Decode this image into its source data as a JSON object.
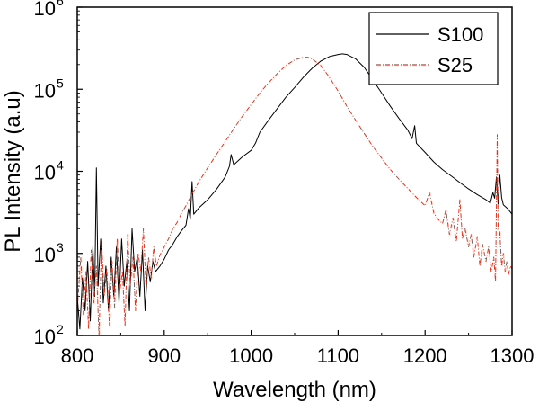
{
  "chart_data": {
    "type": "line",
    "title": "",
    "xlabel": "Wavelength (nm)",
    "ylabel": "PL Intensity (a.u)",
    "xlim": [
      800,
      1300
    ],
    "ylim": [
      100,
      1000000
    ],
    "yscale": "log",
    "grid": false,
    "legend_position": "top-right",
    "x_ticks": [
      800,
      900,
      1000,
      1100,
      1200,
      1300
    ],
    "x_tick_labels": [
      "800",
      "900",
      "1000",
      "1100",
      "1200",
      "1300"
    ],
    "y_ticks": [
      100,
      1000,
      10000,
      100000,
      1000000
    ],
    "y_tick_labels": [
      {
        "base": "10",
        "exp": "2"
      },
      {
        "base": "10",
        "exp": "3"
      },
      {
        "base": "10",
        "exp": "4"
      },
      {
        "base": "10",
        "exp": "5"
      },
      {
        "base": "10",
        "exp": "6"
      }
    ],
    "series": [
      {
        "name": "S100",
        "color": "#000000",
        "style": "solid",
        "points": [
          [
            800,
            300
          ],
          [
            803,
            120
          ],
          [
            806,
            500
          ],
          [
            809,
            200
          ],
          [
            812,
            800
          ],
          [
            815,
            150
          ],
          [
            818,
            1200
          ],
          [
            820,
            300
          ],
          [
            822,
            11000
          ],
          [
            824,
            400
          ],
          [
            827,
            1500
          ],
          [
            830,
            250
          ],
          [
            833,
            700
          ],
          [
            836,
            200
          ],
          [
            839,
            900
          ],
          [
            842,
            300
          ],
          [
            845,
            1200
          ],
          [
            848,
            250
          ],
          [
            851,
            1500
          ],
          [
            854,
            400
          ],
          [
            857,
            800
          ],
          [
            860,
            200
          ],
          [
            863,
            2000
          ],
          [
            866,
            600
          ],
          [
            869,
            900
          ],
          [
            872,
            300
          ],
          [
            875,
            1100
          ],
          [
            878,
            200
          ],
          [
            881,
            700
          ],
          [
            884,
            450
          ],
          [
            887,
            800
          ],
          [
            890,
            600
          ],
          [
            895,
            700
          ],
          [
            900,
            850
          ],
          [
            905,
            1100
          ],
          [
            910,
            1300
          ],
          [
            915,
            1600
          ],
          [
            920,
            1900
          ],
          [
            925,
            2200
          ],
          [
            928,
            3500
          ],
          [
            930,
            2600
          ],
          [
            932,
            7500
          ],
          [
            934,
            3000
          ],
          [
            940,
            3600
          ],
          [
            950,
            4500
          ],
          [
            960,
            6000
          ],
          [
            970,
            8500
          ],
          [
            975,
            11500
          ],
          [
            977,
            16000
          ],
          [
            980,
            12000
          ],
          [
            990,
            15000
          ],
          [
            1000,
            18000
          ],
          [
            1005,
            22000
          ],
          [
            1010,
            30000
          ],
          [
            1020,
            42000
          ],
          [
            1030,
            58000
          ],
          [
            1040,
            80000
          ],
          [
            1050,
            105000
          ],
          [
            1060,
            140000
          ],
          [
            1070,
            180000
          ],
          [
            1080,
            220000
          ],
          [
            1090,
            250000
          ],
          [
            1100,
            265000
          ],
          [
            1105,
            270000
          ],
          [
            1110,
            265000
          ],
          [
            1120,
            235000
          ],
          [
            1130,
            185000
          ],
          [
            1140,
            130000
          ],
          [
            1150,
            90000
          ],
          [
            1160,
            62000
          ],
          [
            1170,
            44000
          ],
          [
            1180,
            32000
          ],
          [
            1185,
            25000
          ],
          [
            1188,
            36000
          ],
          [
            1190,
            22000
          ],
          [
            1200,
            17000
          ],
          [
            1210,
            13000
          ],
          [
            1220,
            10500
          ],
          [
            1230,
            8800
          ],
          [
            1240,
            7300
          ],
          [
            1250,
            6100
          ],
          [
            1260,
            5200
          ],
          [
            1270,
            4500
          ],
          [
            1275,
            4100
          ],
          [
            1278,
            5500
          ],
          [
            1280,
            4700
          ],
          [
            1282,
            8500
          ],
          [
            1284,
            4000
          ],
          [
            1286,
            9000
          ],
          [
            1288,
            4800
          ],
          [
            1290,
            3900
          ],
          [
            1295,
            3500
          ],
          [
            1300,
            3000
          ]
        ]
      },
      {
        "name": "S25",
        "color": "#e8331c",
        "style": "dash-dot",
        "points": [
          [
            800,
            200
          ],
          [
            804,
            900
          ],
          [
            807,
            180
          ],
          [
            810,
            600
          ],
          [
            813,
            120
          ],
          [
            816,
            1100
          ],
          [
            819,
            250
          ],
          [
            822,
            700
          ],
          [
            825,
            100
          ],
          [
            828,
            1400
          ],
          [
            831,
            300
          ],
          [
            834,
            650
          ],
          [
            837,
            130
          ],
          [
            840,
            800
          ],
          [
            843,
            220
          ],
          [
            846,
            1500
          ],
          [
            849,
            350
          ],
          [
            852,
            600
          ],
          [
            855,
            130
          ],
          [
            858,
            1700
          ],
          [
            861,
            400
          ],
          [
            864,
            900
          ],
          [
            867,
            200
          ],
          [
            870,
            1000
          ],
          [
            873,
            600
          ],
          [
            876,
            2000
          ],
          [
            879,
            400
          ],
          [
            882,
            900
          ],
          [
            885,
            500
          ],
          [
            888,
            1200
          ],
          [
            891,
            700
          ],
          [
            895,
            950
          ],
          [
            900,
            1200
          ],
          [
            905,
            1500
          ],
          [
            910,
            2000
          ],
          [
            915,
            2400
          ],
          [
            920,
            3100
          ],
          [
            925,
            3800
          ],
          [
            930,
            4800
          ],
          [
            935,
            6000
          ],
          [
            940,
            7500
          ],
          [
            950,
            11000
          ],
          [
            960,
            16000
          ],
          [
            970,
            23000
          ],
          [
            980,
            33000
          ],
          [
            990,
            47000
          ],
          [
            1000,
            65000
          ],
          [
            1010,
            90000
          ],
          [
            1020,
            120000
          ],
          [
            1030,
            155000
          ],
          [
            1040,
            195000
          ],
          [
            1050,
            228000
          ],
          [
            1060,
            245000
          ],
          [
            1065,
            246000
          ],
          [
            1070,
            235000
          ],
          [
            1080,
            195000
          ],
          [
            1090,
            140000
          ],
          [
            1100,
            95000
          ],
          [
            1110,
            62000
          ],
          [
            1120,
            42000
          ],
          [
            1130,
            29000
          ],
          [
            1140,
            20000
          ],
          [
            1150,
            14500
          ],
          [
            1160,
            10500
          ],
          [
            1170,
            8000
          ],
          [
            1180,
            6200
          ],
          [
            1190,
            4800
          ],
          [
            1200,
            3800
          ],
          [
            1205,
            5500
          ],
          [
            1210,
            3100
          ],
          [
            1215,
            2600
          ],
          [
            1220,
            2300
          ],
          [
            1224,
            3400
          ],
          [
            1228,
            1700
          ],
          [
            1232,
            2700
          ],
          [
            1236,
            1400
          ],
          [
            1240,
            4500
          ],
          [
            1243,
            1500
          ],
          [
            1246,
            2000
          ],
          [
            1250,
            1200
          ],
          [
            1253,
            1700
          ],
          [
            1256,
            900
          ],
          [
            1260,
            1600
          ],
          [
            1263,
            700
          ],
          [
            1266,
            1300
          ],
          [
            1270,
            800
          ],
          [
            1273,
            1200
          ],
          [
            1276,
            600
          ],
          [
            1279,
            900
          ],
          [
            1281,
            450
          ],
          [
            1283,
            28000
          ],
          [
            1284,
            2000
          ],
          [
            1286,
            1800
          ],
          [
            1288,
            700
          ],
          [
            1290,
            1000
          ],
          [
            1292,
            600
          ],
          [
            1294,
            800
          ],
          [
            1296,
            550
          ],
          [
            1298,
            700
          ],
          [
            1300,
            650
          ]
        ]
      }
    ]
  }
}
